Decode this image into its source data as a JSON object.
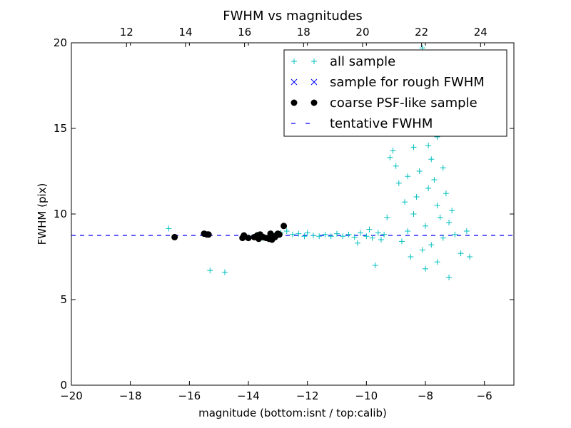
{
  "chart_data": {
    "type": "scatter",
    "title": "FWHM vs magnitudes",
    "xlabel": "magnitude (bottom:isnt / top:calib)",
    "ylabel": "FWHM (pix)",
    "xlim": [
      -20,
      -5
    ],
    "ylim": [
      0,
      20
    ],
    "x_ticks": [
      -20,
      -18,
      -16,
      -14,
      -12,
      -10,
      -8,
      -6
    ],
    "x_tick_labels": [
      "−20",
      "−18",
      "−16",
      "−14",
      "−12",
      "−10",
      "−8",
      "−6"
    ],
    "y_ticks": [
      0,
      5,
      10,
      15,
      20
    ],
    "y_tick_labels": [
      "0",
      "5",
      "10",
      "15",
      "20"
    ],
    "top_axis": {
      "xlim": [
        10.13,
        25.13
      ],
      "ticks": [
        12,
        14,
        16,
        18,
        20,
        22,
        24
      ],
      "tick_labels": [
        "12",
        "14",
        "16",
        "18",
        "20",
        "22",
        "24"
      ]
    },
    "grid": false,
    "legend_position": "upper-right",
    "colors": {
      "all_sample": "#00bfbf",
      "rough_sample": "#0000ff",
      "psf_sample": "#000000",
      "fwhm_line": "#0000ff"
    },
    "tentative_fwhm": 8.75,
    "series": [
      {
        "name": "all sample",
        "marker": "plus",
        "points": [
          [
            -16.7,
            9.15
          ],
          [
            -15.4,
            8.8
          ],
          [
            -15.3,
            6.7
          ],
          [
            -14.8,
            6.6
          ],
          [
            -14.1,
            8.7
          ],
          [
            -14.0,
            8.65
          ],
          [
            -13.7,
            8.8
          ],
          [
            -13.5,
            8.6
          ],
          [
            -13.3,
            8.7
          ],
          [
            -13.1,
            8.8
          ],
          [
            -12.9,
            8.9
          ],
          [
            -12.7,
            9.0
          ],
          [
            -12.5,
            8.8
          ],
          [
            -12.3,
            8.85
          ],
          [
            -12.1,
            8.7
          ],
          [
            -12.0,
            8.9
          ],
          [
            -11.8,
            8.75
          ],
          [
            -11.6,
            8.7
          ],
          [
            -11.4,
            8.8
          ],
          [
            -11.2,
            8.7
          ],
          [
            -11.0,
            8.85
          ],
          [
            -10.8,
            8.7
          ],
          [
            -10.6,
            8.8
          ],
          [
            -10.4,
            8.65
          ],
          [
            -10.3,
            8.3
          ],
          [
            -10.2,
            8.9
          ],
          [
            -10.0,
            8.7
          ],
          [
            -9.9,
            9.1
          ],
          [
            -9.8,
            8.6
          ],
          [
            -9.7,
            7.0
          ],
          [
            -9.6,
            8.9
          ],
          [
            -9.5,
            8.5
          ],
          [
            -9.4,
            8.8
          ],
          [
            -9.3,
            9.8
          ],
          [
            -9.2,
            13.3
          ],
          [
            -9.1,
            13.7
          ],
          [
            -9.0,
            12.8
          ],
          [
            -8.9,
            11.8
          ],
          [
            -8.8,
            8.4
          ],
          [
            -8.7,
            10.7
          ],
          [
            -8.6,
            12.2
          ],
          [
            -8.6,
            9.0
          ],
          [
            -8.5,
            7.5
          ],
          [
            -8.4,
            13.9
          ],
          [
            -8.3,
            11.0
          ],
          [
            -8.2,
            12.5
          ],
          [
            -8.1,
            7.9
          ],
          [
            -8.1,
            19.7
          ],
          [
            -8.0,
            9.3
          ],
          [
            -7.9,
            11.5
          ],
          [
            -7.8,
            13.2
          ],
          [
            -7.8,
            8.2
          ],
          [
            -7.7,
            12.0
          ],
          [
            -7.6,
            10.5
          ],
          [
            -7.6,
            14.5
          ],
          [
            -7.5,
            9.8
          ],
          [
            -7.4,
            12.7
          ],
          [
            -7.4,
            8.6
          ],
          [
            -7.3,
            11.2
          ],
          [
            -7.2,
            9.5
          ],
          [
            -7.1,
            10.2
          ],
          [
            -7.0,
            8.8
          ],
          [
            -6.8,
            7.7
          ],
          [
            -6.6,
            9.0
          ],
          [
            -6.5,
            7.5
          ],
          [
            -7.2,
            6.3
          ],
          [
            -8.0,
            6.8
          ],
          [
            -7.6,
            7.2
          ],
          [
            -8.3,
            15.0
          ],
          [
            -7.5,
            15.5
          ],
          [
            -8.0,
            15.2
          ],
          [
            -7.9,
            14.0
          ],
          [
            -8.4,
            10.0
          ]
        ]
      },
      {
        "name": "sample for rough FWHM",
        "marker": "x",
        "points": []
      },
      {
        "name": "coarse PSF-like sample",
        "marker": "dot",
        "points": [
          [
            -16.5,
            8.65
          ],
          [
            -15.5,
            8.85
          ],
          [
            -15.4,
            8.8
          ],
          [
            -15.35,
            8.8
          ],
          [
            -14.2,
            8.6
          ],
          [
            -14.15,
            8.75
          ],
          [
            -14.0,
            8.6
          ],
          [
            -13.8,
            8.65
          ],
          [
            -13.7,
            8.75
          ],
          [
            -13.65,
            8.55
          ],
          [
            -13.6,
            8.8
          ],
          [
            -13.5,
            8.65
          ],
          [
            -13.4,
            8.6
          ],
          [
            -13.3,
            8.55
          ],
          [
            -13.25,
            8.85
          ],
          [
            -13.2,
            8.5
          ],
          [
            -13.15,
            8.7
          ],
          [
            -13.1,
            8.65
          ],
          [
            -13.05,
            8.75
          ],
          [
            -13.0,
            8.85
          ],
          [
            -12.95,
            8.8
          ],
          [
            -12.8,
            9.3
          ]
        ]
      }
    ],
    "legend": [
      {
        "label": "all sample",
        "marker": "plus"
      },
      {
        "label": "sample for rough FWHM",
        "marker": "x"
      },
      {
        "label": "coarse PSF-like sample",
        "marker": "dot"
      },
      {
        "label": "tentative FWHM",
        "marker": "dashed-line"
      }
    ]
  }
}
